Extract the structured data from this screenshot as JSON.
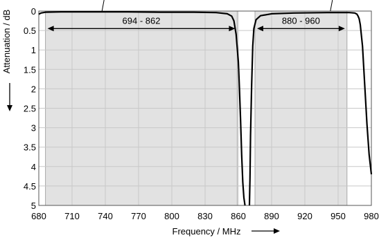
{
  "chart_data": {
    "type": "line",
    "xlabel": "Frequency / MHz",
    "ylabel": "Attenuation / dB",
    "xlim": [
      680,
      980
    ],
    "ylim": [
      0,
      5
    ],
    "y_inverted": true,
    "xticks": [
      680,
      710,
      740,
      770,
      800,
      830,
      860,
      890,
      920,
      950,
      980
    ],
    "yticks": [
      0,
      0.5,
      1,
      1.5,
      2,
      2.5,
      3,
      3.5,
      4,
      4.5,
      5
    ],
    "xtick_labels": [
      "680",
      "710",
      "740",
      "770",
      "800",
      "830",
      "860",
      "890",
      "920",
      "950",
      "980"
    ],
    "ytick_labels": [
      "0",
      "0.5",
      "1",
      "1.5",
      "2",
      "2.5",
      "3",
      "3.5",
      "4",
      "4.5",
      "5"
    ],
    "grid": true,
    "bands": [
      {
        "label": "694 - 862",
        "from": 686,
        "to": 859,
        "arrow_y": 0.45
      },
      {
        "label": "880 - 960",
        "from": 875,
        "to": 958,
        "arrow_y": 0.45
      }
    ],
    "band_fill": "#e2e2e2",
    "series": [
      {
        "line_color": "#000000",
        "segments": [
          {
            "x": [
              680,
              682,
              686,
              700,
              730,
              760,
              790,
              820,
              840,
              850,
              854,
              856,
              858,
              860,
              861,
              862,
              863,
              864,
              865,
              866
            ],
            "y": [
              0.08,
              0.05,
              0.03,
              0.02,
              0.02,
              0.02,
              0.03,
              0.03,
              0.04,
              0.07,
              0.13,
              0.25,
              0.6,
              1.3,
              2.0,
              2.8,
              3.7,
              4.4,
              4.8,
              5.0
            ]
          },
          {
            "x": [
              870,
              870.5,
              871,
              872,
              873,
              874,
              876,
              880,
              890,
              910,
              940,
              960,
              965,
              967,
              968,
              969,
              970,
              972,
              974,
              976,
              978,
              980
            ],
            "y": [
              5.0,
              4.3,
              3.2,
              1.9,
              0.9,
              0.45,
              0.22,
              0.12,
              0.07,
              0.05,
              0.04,
              0.04,
              0.05,
              0.08,
              0.13,
              0.2,
              0.35,
              0.9,
              1.9,
              2.9,
              3.7,
              4.2
            ]
          }
        ]
      }
    ],
    "callouts": [
      {
        "x": 737,
        "y": 0
      },
      {
        "x": 943,
        "y": 0
      }
    ]
  }
}
